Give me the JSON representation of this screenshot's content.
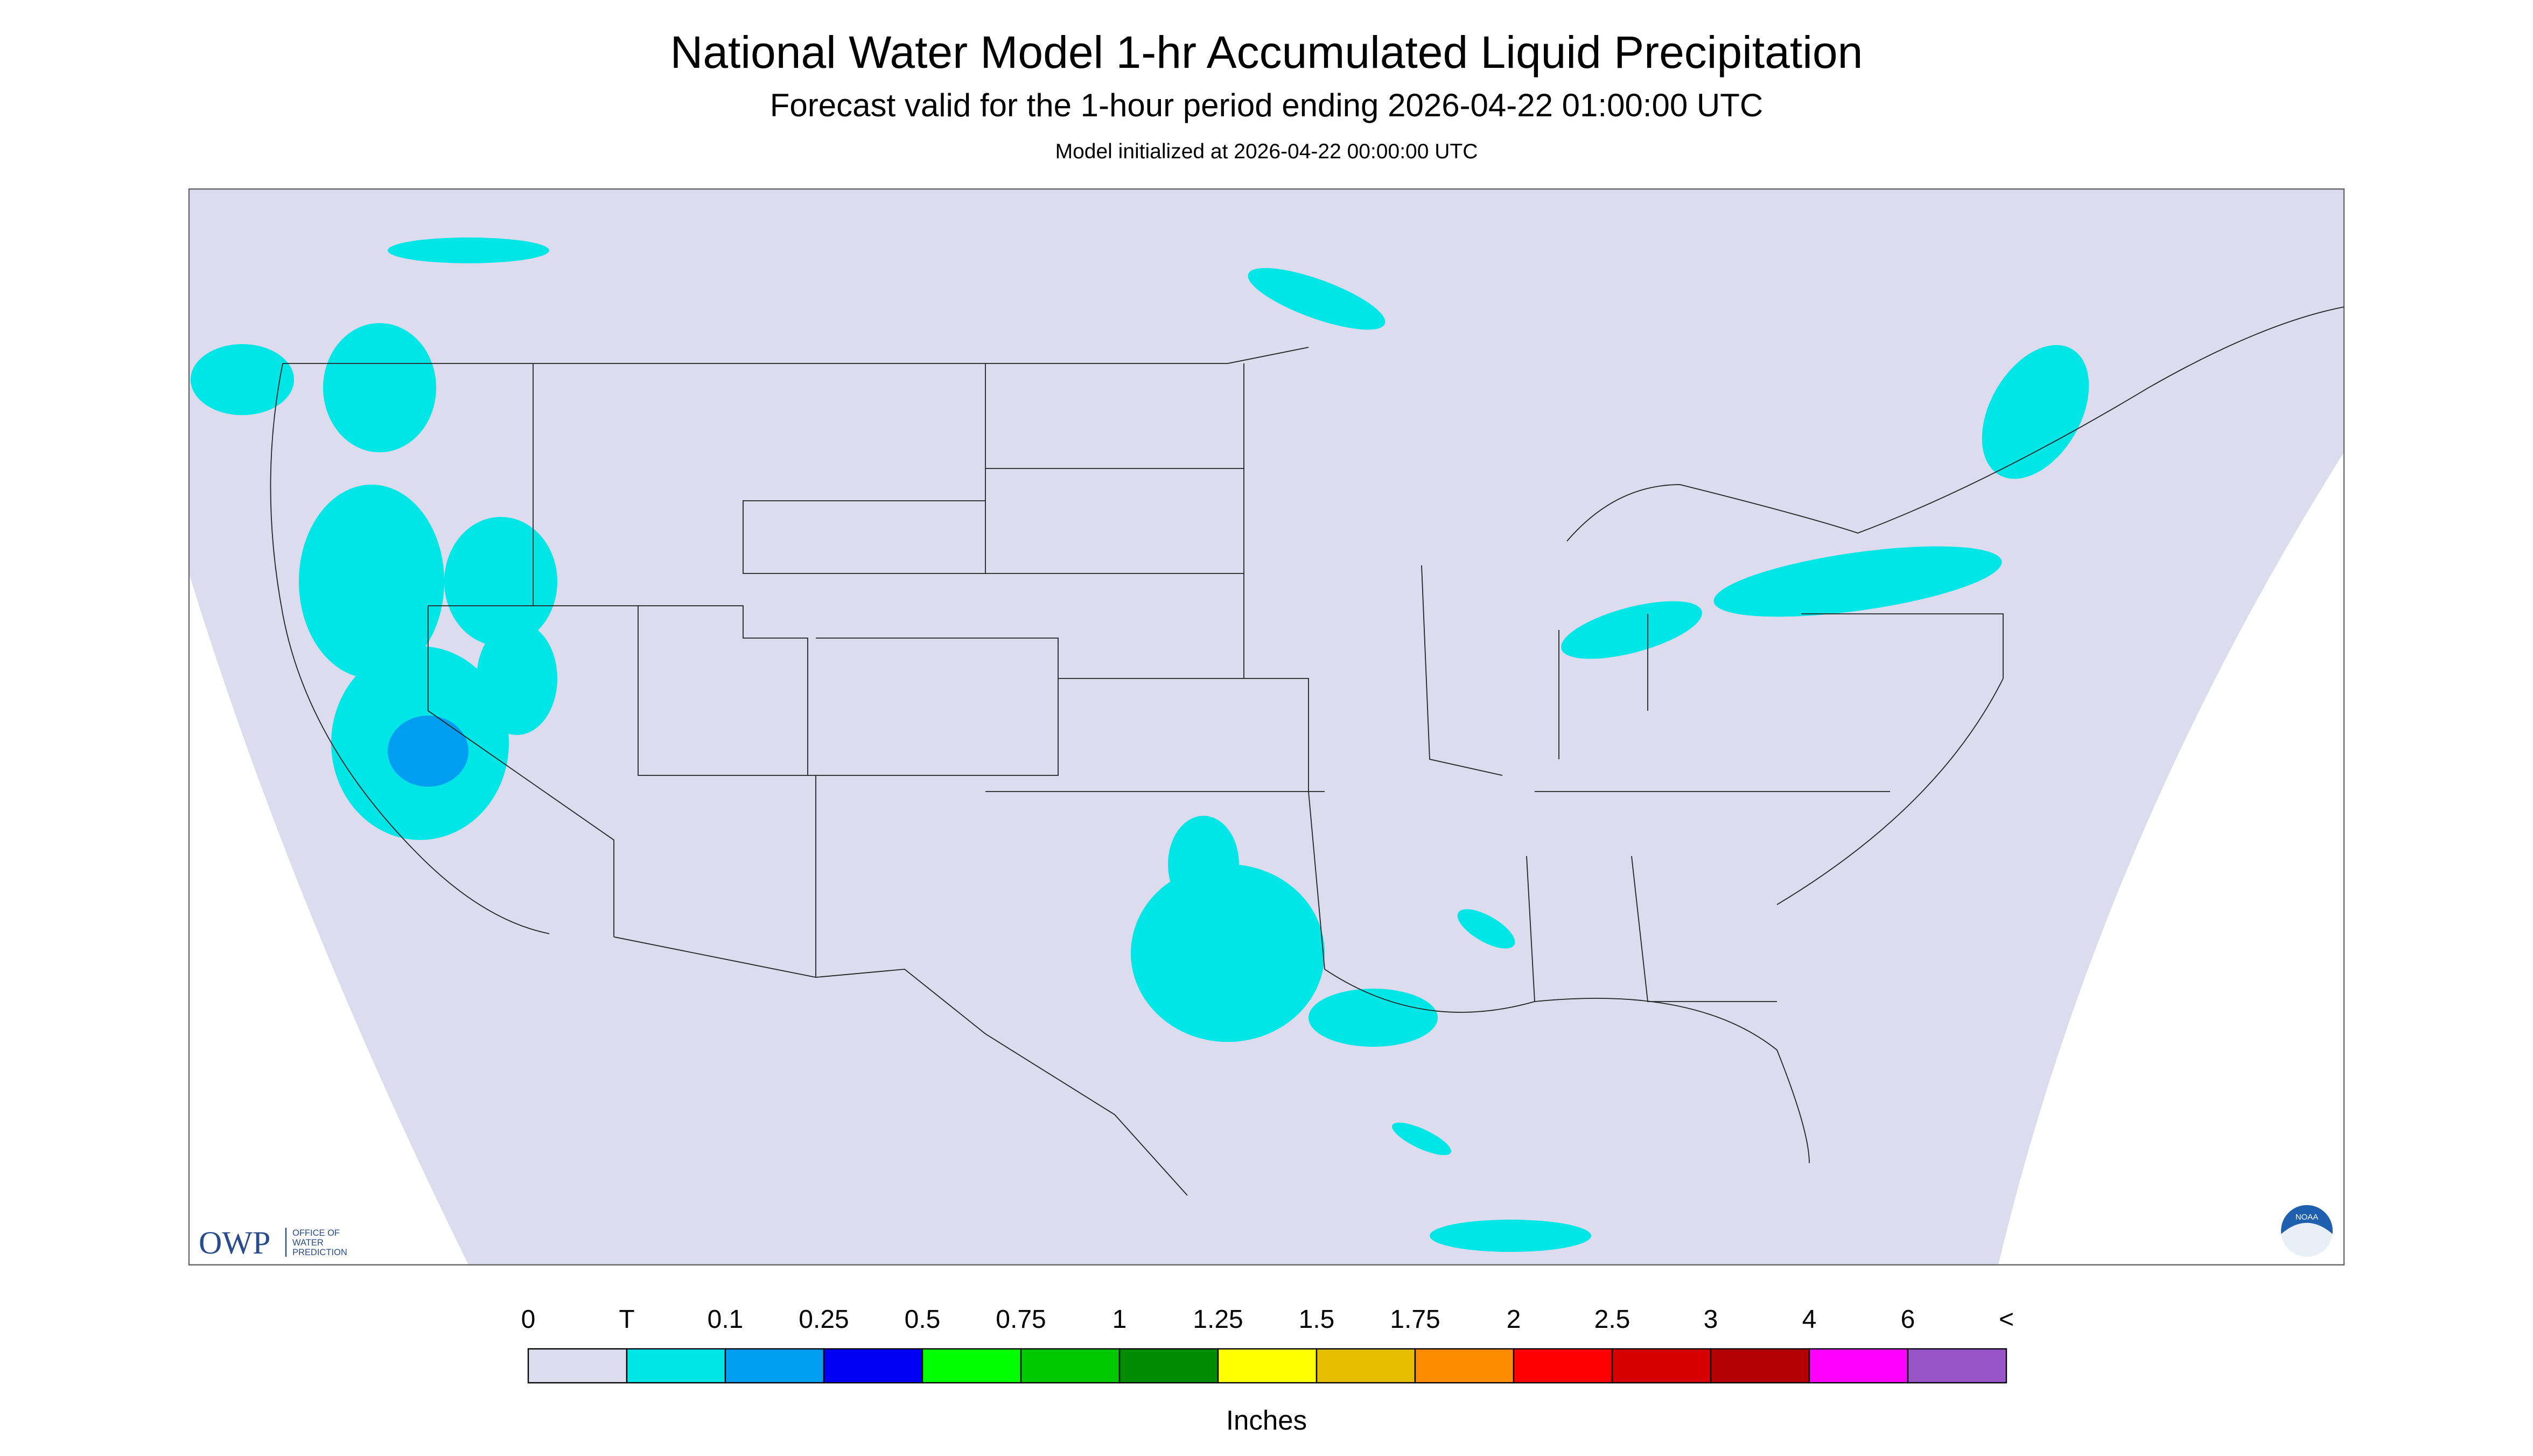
{
  "header": {
    "title": "National Water Model 1-hr Accumulated Liquid Precipitation",
    "subtitle": "Forecast valid for the 1-hour period ending 2026-04-22 01:00:00 UTC",
    "initialized": "Model initialized at 2026-04-22 00:00:00 UTC"
  },
  "logo": {
    "owp": "OWP",
    "office": "OFFICE OF",
    "water": "WATER",
    "prediction": "PREDICTION",
    "noaa": "NOAA"
  },
  "legend": {
    "labels": [
      "0",
      "T",
      "0.1",
      "0.25",
      "0.5",
      "0.75",
      "1",
      "1.25",
      "1.5",
      "1.75",
      "2",
      "2.5",
      "3",
      "4",
      "6",
      "<"
    ],
    "colors": [
      "#dcdcee",
      "#00e6e6",
      "#009ef0",
      "#0000f5",
      "#00ff00",
      "#00c800",
      "#008c00",
      "#ffff00",
      "#e6be00",
      "#ff8c00",
      "#ff0000",
      "#d60000",
      "#b40000",
      "#ff00ff",
      "#9955c8"
    ],
    "unit": "Inches"
  }
}
